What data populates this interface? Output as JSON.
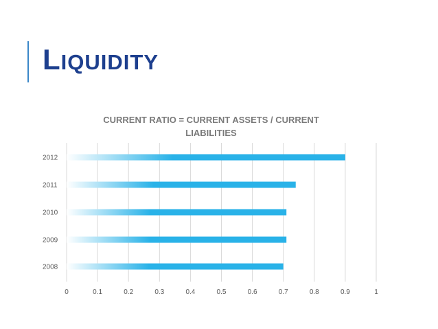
{
  "slide": {
    "title_first": "L",
    "title_rest": "IQUIDITY"
  },
  "chart_data": {
    "type": "bar",
    "orientation": "horizontal",
    "title": "CURRENT RATIO = CURRENT ASSETS / CURRENT LIABILITIES",
    "categories": [
      "2012",
      "2011",
      "2010",
      "2009",
      "2008"
    ],
    "values": [
      0.9,
      0.74,
      0.71,
      0.71,
      0.7
    ],
    "xlim": [
      0,
      1
    ],
    "xticks": [
      "0",
      "0.1",
      "0.2",
      "0.3",
      "0.4",
      "0.5",
      "0.6",
      "0.7",
      "0.8",
      "0.9",
      "1"
    ],
    "grid": true,
    "legend": "none",
    "bar_color": "#29b2e8",
    "bar_fade_color": "#ffffff"
  }
}
